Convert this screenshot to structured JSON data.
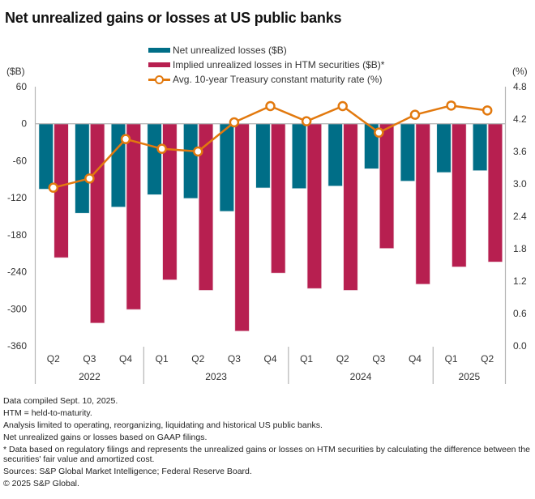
{
  "title": "Net unrealized gains or losses at US public banks",
  "colors": {
    "net_losses": "#006E87",
    "htm_losses": "#B71F50",
    "rate_line": "#E2790E",
    "axis": "#b5b5b5"
  },
  "legend": [
    {
      "label": "Net unrealized losses ($B)",
      "type": "bar",
      "series": "net_losses"
    },
    {
      "label": "Implied unrealized losses in HTM securities ($B)*",
      "type": "bar",
      "series": "htm_losses"
    },
    {
      "label": "Avg. 10-year Treasury constant maturity rate (%)",
      "type": "line",
      "series": "rate_line"
    }
  ],
  "chart_data": {
    "type": "bar",
    "title": "Net unrealized gains or losses at US public banks",
    "categories": [
      "2022 Q2",
      "2022 Q3",
      "2022 Q4",
      "2023 Q1",
      "2023 Q2",
      "2023 Q3",
      "2023 Q4",
      "2024 Q1",
      "2024 Q2",
      "2024 Q3",
      "2024 Q4",
      "2025 Q1",
      "2025 Q2"
    ],
    "quarter_labels": [
      "Q2",
      "Q3",
      "Q4",
      "Q1",
      "Q2",
      "Q3",
      "Q4",
      "Q1",
      "Q2",
      "Q3",
      "Q4",
      "Q1",
      "Q2"
    ],
    "year_groups": [
      {
        "label": "2022",
        "count": 3
      },
      {
        "label": "2023",
        "count": 4
      },
      {
        "label": "2024",
        "count": 4
      },
      {
        "label": "2025",
        "count": 2
      }
    ],
    "series": [
      {
        "name": "Net unrealized losses ($B)",
        "type": "bar",
        "axis": "left",
        "values": [
          -106,
          -145,
          -135,
          -115,
          -121,
          -142,
          -104,
          -105,
          -101,
          -73,
          -93,
          -79,
          -76
        ]
      },
      {
        "name": "Implied unrealized losses in HTM securities ($B)*",
        "type": "bar",
        "axis": "left",
        "values": [
          -217,
          -323,
          -301,
          -253,
          -270,
          -336,
          -242,
          -267,
          -270,
          -202,
          -260,
          -232,
          -224
        ]
      },
      {
        "name": "Avg. 10-year Treasury constant maturity rate (%)",
        "type": "line",
        "axis": "right",
        "values": [
          2.93,
          3.1,
          3.83,
          3.65,
          3.6,
          4.14,
          4.44,
          4.16,
          4.44,
          3.95,
          4.28,
          4.45,
          4.36
        ]
      }
    ],
    "ylabel": "($B)",
    "ylim": [
      -360,
      60
    ],
    "yticks": [
      "60",
      "0",
      "-60",
      "-120",
      "-180",
      "-240",
      "-300",
      "-360"
    ],
    "y2label": "(%)",
    "y2lim": [
      0.0,
      4.8
    ],
    "y2ticks": [
      "4.8",
      "4.2",
      "3.6",
      "3.0",
      "2.4",
      "1.8",
      "1.2",
      "0.6",
      "0.0"
    ],
    "grid": false,
    "legend_position": "top-center"
  },
  "notes": [
    "Data compiled Sept. 10, 2025.",
    "HTM = held-to-maturity.",
    "Analysis limited to operating, reorganizing, liquidating and historical US public banks.",
    "Net unrealized gains or losses based on GAAP filings.",
    "* Data based on regulatory filings and represents the unrealized gains or losses on HTM securities by calculating the difference between the securities' fair value and amortized cost.",
    "Sources: S&P Global Market Intelligence; Federal Reserve Board.",
    "© 2025 S&P Global."
  ]
}
